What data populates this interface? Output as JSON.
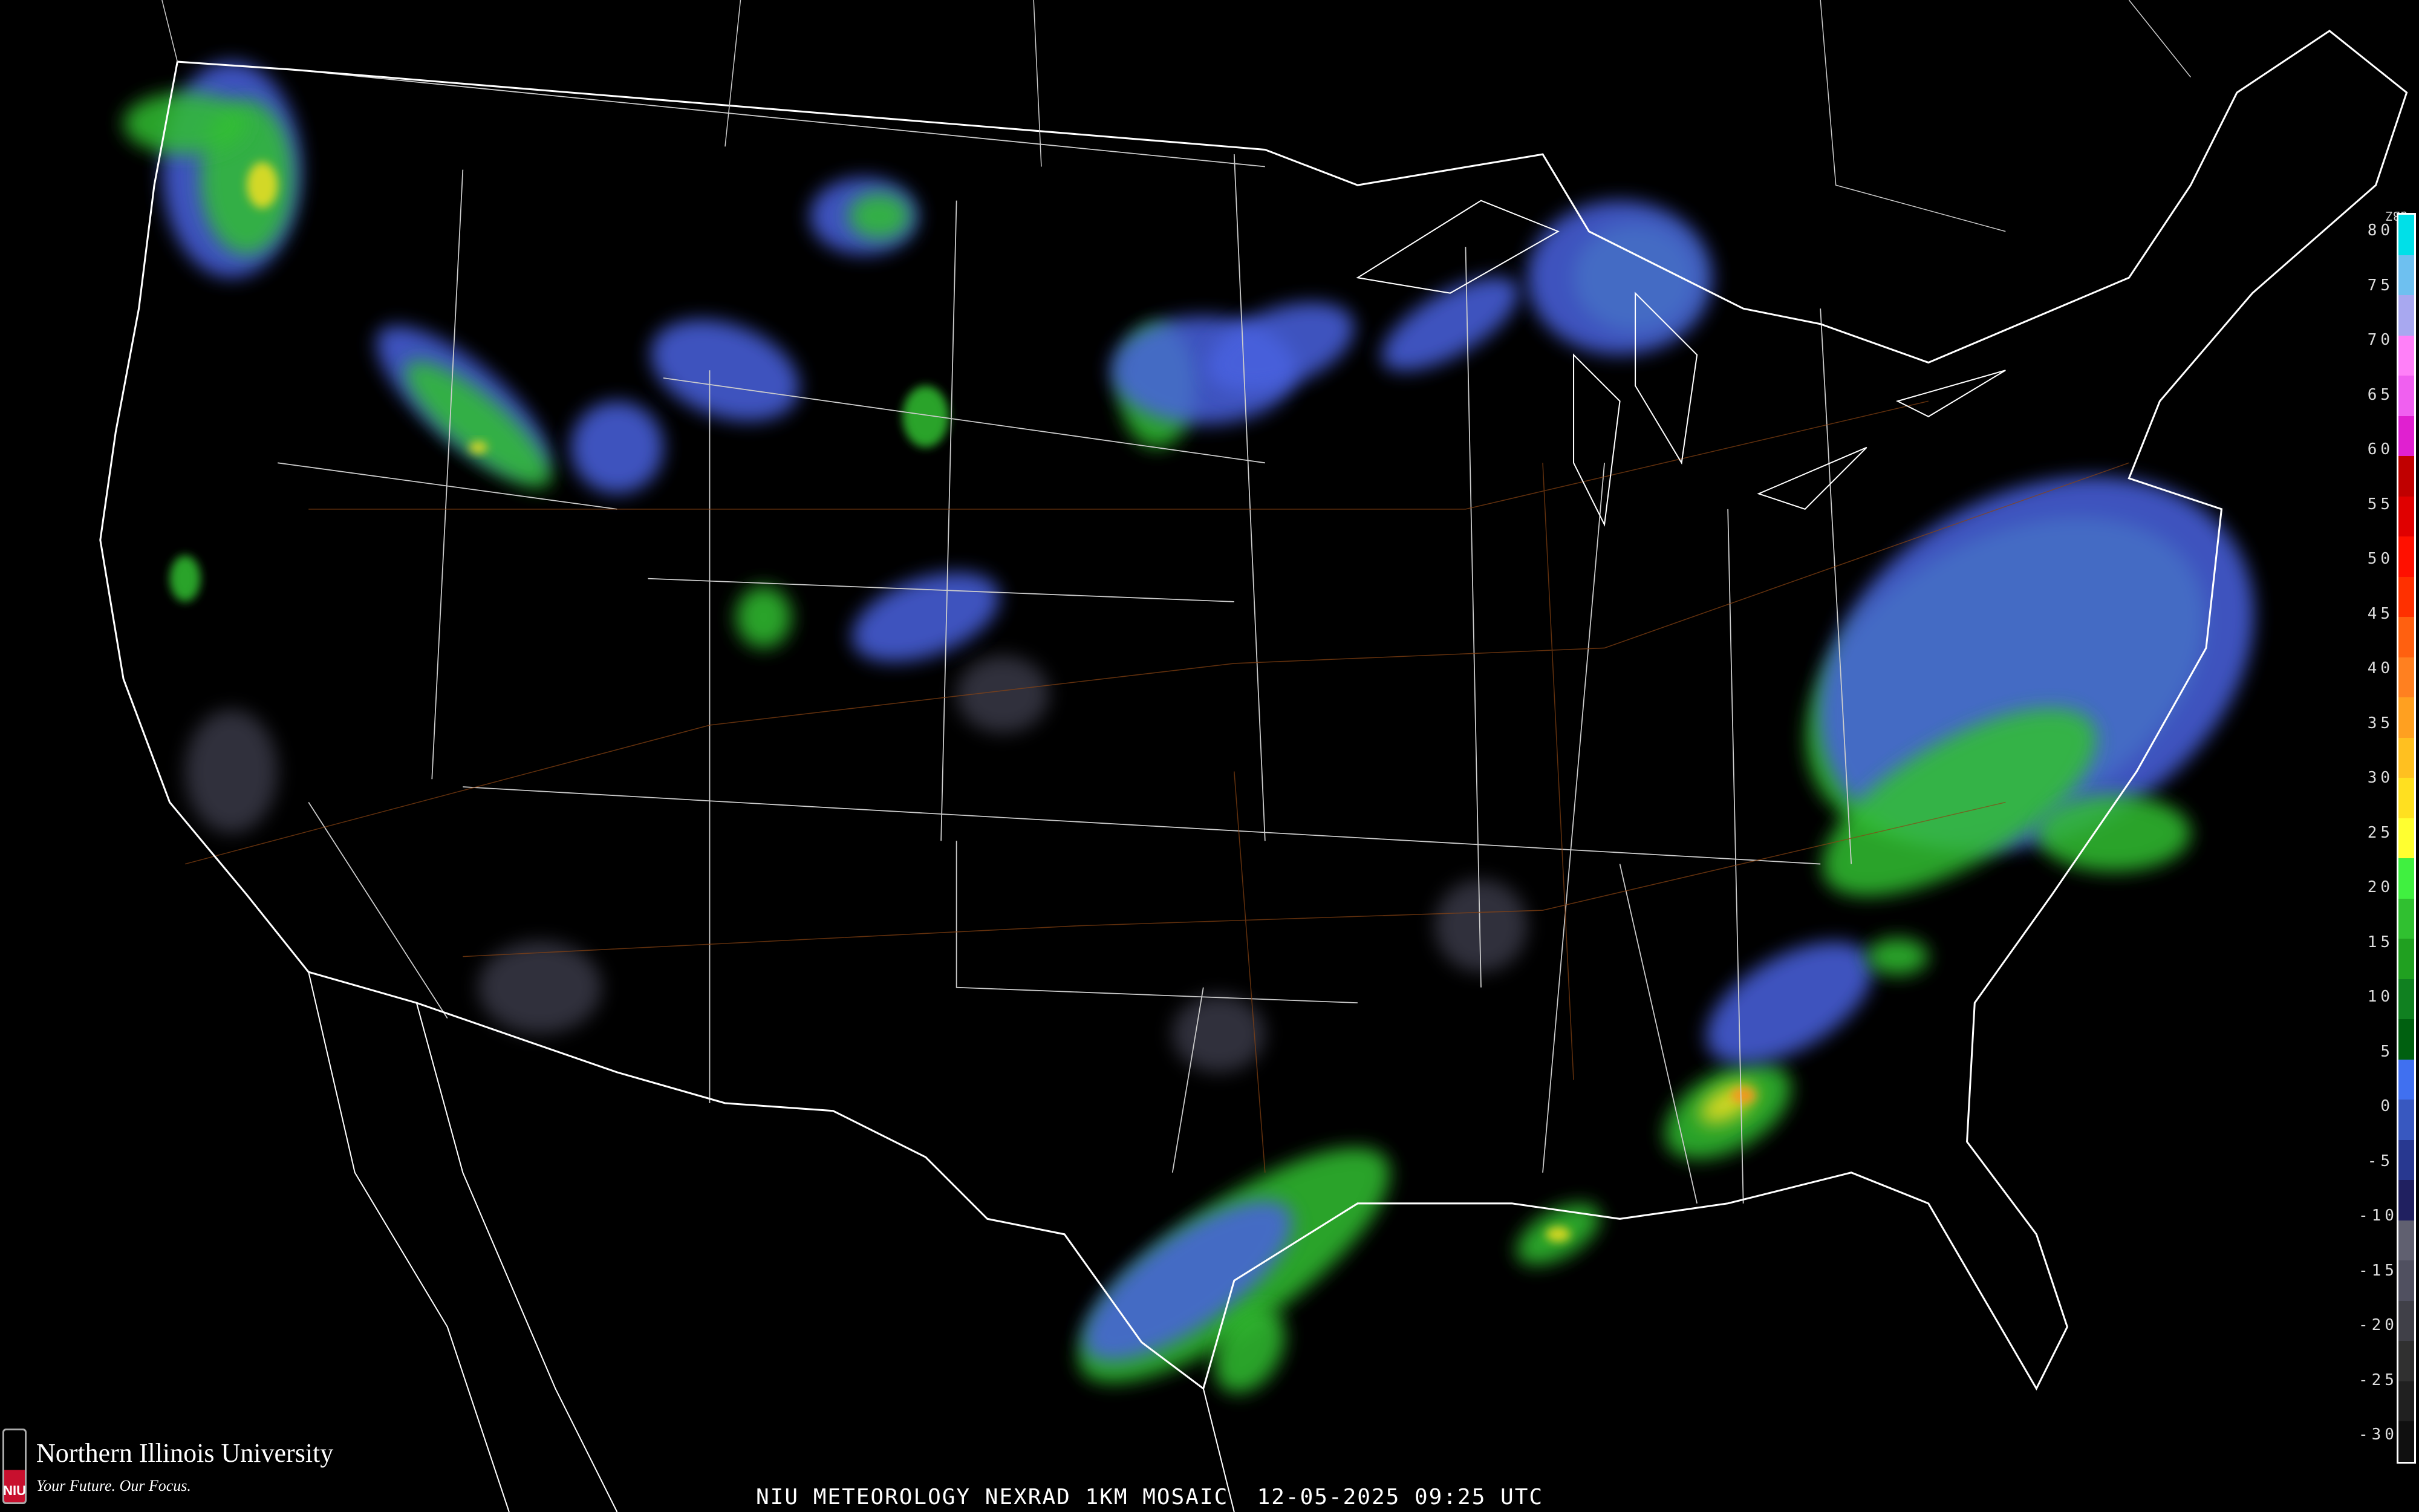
{
  "title": "NIU METEOROLOGY NEXRAD 1KM MOSAIC  12-05-2025 09:25 UTC",
  "branding": {
    "name": "Northern Illinois University",
    "tagline": "Your Future. Our Focus.",
    "shield_text": "NIU"
  },
  "legend": {
    "unit": "dBZ",
    "labels": [
      "80",
      "75",
      "70",
      "65",
      "60",
      "55",
      "50",
      "45",
      "40",
      "35",
      "30",
      "25",
      "20",
      "15",
      "10",
      "5",
      "0",
      "-5",
      "-10",
      "-15",
      "-20",
      "-25",
      "-30"
    ],
    "colors": [
      "#00e0e8",
      "#6ec0f0",
      "#a8a8f0",
      "#ff80f8",
      "#f060f0",
      "#e020d0",
      "#c00000",
      "#e00000",
      "#ff1000",
      "#ff3000",
      "#ff6010",
      "#ff8020",
      "#ffa020",
      "#ffc020",
      "#ffe020",
      "#ffff30",
      "#40f040",
      "#30c030",
      "#20a020",
      "#108020",
      "#006010",
      "#4070f0",
      "#3858c0",
      "#283890",
      "#202060",
      "#606070",
      "#505060",
      "#404048",
      "#303030",
      "#202020",
      "#101010"
    ]
  },
  "colors": {
    "background": "#000000",
    "borders": "#ffffff",
    "roads": "#8b4513"
  }
}
